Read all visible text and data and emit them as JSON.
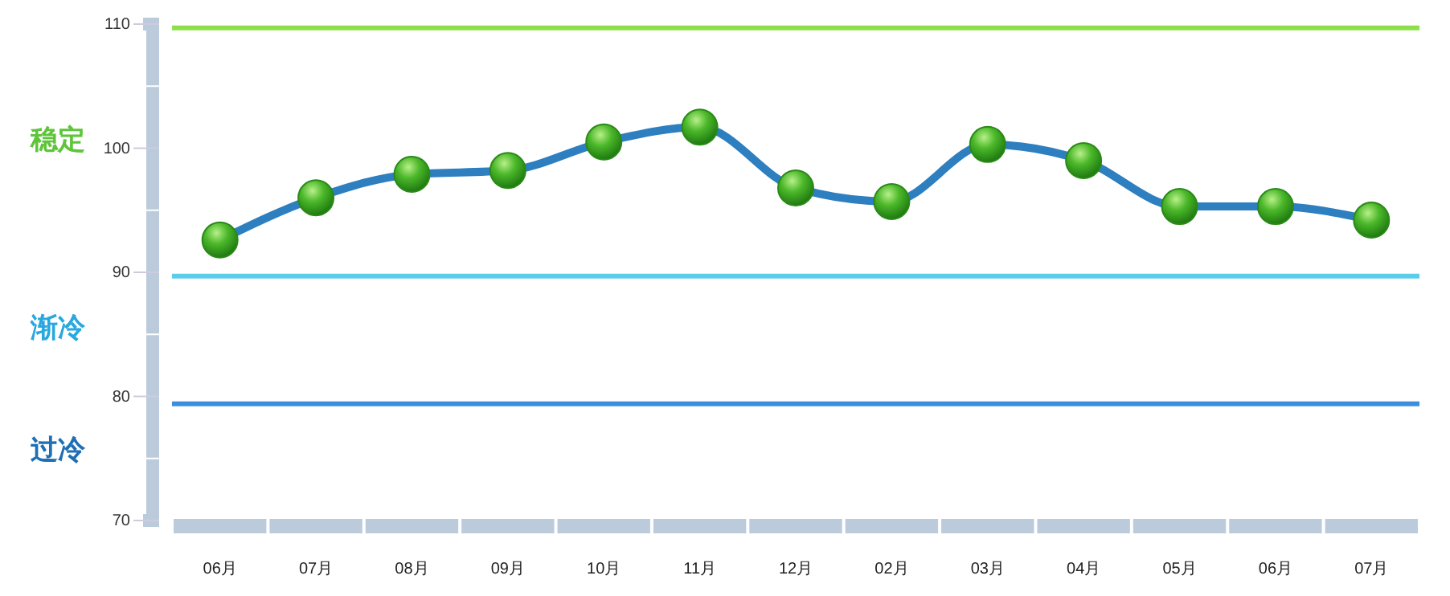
{
  "chart_data": {
    "type": "line",
    "categories": [
      "06月",
      "07月",
      "08月",
      "09月",
      "10月",
      "11月",
      "12月",
      "02月",
      "03月",
      "04月",
      "05月",
      "06月",
      "07月"
    ],
    "series": [
      {
        "color": "#2e7fc0",
        "values": [
          92.6,
          96.0,
          97.9,
          98.2,
          100.5,
          101.7,
          96.8,
          95.7,
          100.3,
          99.0,
          95.3,
          95.3,
          94.2
        ]
      }
    ],
    "ylim": [
      70,
      110
    ],
    "yticks": [
      70,
      {
        "value": 75,
        "label": null
      },
      80,
      {
        "value": 85,
        "label": null
      },
      90,
      {
        "value": 95,
        "label": null
      },
      100,
      {
        "value": 105,
        "label": null
      },
      110
    ],
    "marker": "circle",
    "grid": false,
    "ref_lines": [
      {
        "axis": "y",
        "value": 109.7,
        "color": "#8ee04a"
      },
      {
        "axis": "y",
        "value": 89.7,
        "color": "#5ccde8"
      },
      {
        "axis": "y",
        "value": 79.4,
        "color": "#3a8ee0"
      }
    ],
    "annotations": [
      "稳定",
      "渐冷",
      "过冷"
    ]
  }
}
